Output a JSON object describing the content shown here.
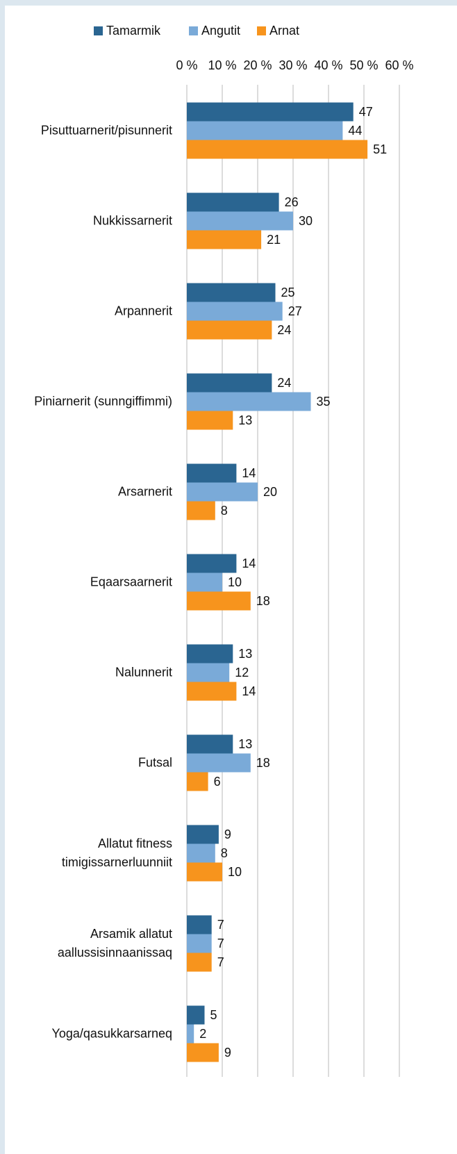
{
  "chart_data": {
    "type": "bar",
    "orientation": "horizontal",
    "categories": [
      "Pisuttuarnerit/pisunnerit",
      "Nukkissarnerit",
      "Arpannerit",
      "Piniarnerit (sunngiffimmi)",
      "Arsarnerit",
      "Eqaarsaarnerit",
      "Nalunnerit",
      "Futsal",
      "Allatut fitness\ntimigissarnerluunniit",
      "Arsamik allatut\naallussisinnaanissaq",
      "Yoga/qasukkarsarneq"
    ],
    "series": [
      {
        "name": "Tamarmik",
        "color": "#2a6591",
        "values": [
          47,
          26,
          25,
          24,
          14,
          14,
          13,
          13,
          9,
          7,
          5
        ]
      },
      {
        "name": "Angutit",
        "color": "#7aaad8",
        "values": [
          44,
          30,
          27,
          35,
          20,
          10,
          12,
          18,
          8,
          7,
          2
        ]
      },
      {
        "name": "Arnat",
        "color": "#f7941d",
        "values": [
          51,
          21,
          24,
          13,
          8,
          18,
          14,
          6,
          10,
          7,
          9
        ]
      }
    ],
    "xlim": [
      0,
      60
    ],
    "xticks": [
      {
        "value": 0,
        "label": "0 %"
      },
      {
        "value": 10,
        "label": "10 %"
      },
      {
        "value": 20,
        "label": "20 %"
      },
      {
        "value": 30,
        "label": "30 %"
      },
      {
        "value": 40,
        "label": "40 %"
      },
      {
        "value": 50,
        "label": "50 %"
      },
      {
        "value": 60,
        "label": "60 %"
      }
    ],
    "grid": true,
    "legend": "top"
  }
}
